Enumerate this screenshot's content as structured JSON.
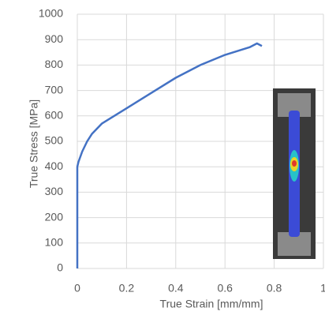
{
  "chart_data": {
    "type": "line",
    "xlabel": "True Strain [mm/mm]",
    "ylabel": "True Stress [MPa]",
    "x": [
      0,
      0,
      0.005,
      0.02,
      0.04,
      0.06,
      0.1,
      0.15,
      0.2,
      0.3,
      0.4,
      0.5,
      0.6,
      0.7,
      0.73,
      0.75
    ],
    "series": [
      {
        "color": "#4472c4",
        "values": [
          0,
          400,
          420,
          460,
          500,
          530,
          570,
          600,
          630,
          690,
          750,
          800,
          840,
          870,
          885,
          875
        ]
      }
    ],
    "xlim": [
      0,
      1
    ],
    "xticks": [
      0,
      0.2,
      0.4,
      0.6,
      0.8,
      1
    ],
    "ylim": [
      0,
      1000
    ],
    "yticks": [
      0,
      100,
      200,
      300,
      400,
      500,
      600,
      700,
      800,
      900,
      1000
    ],
    "grid": true
  }
}
